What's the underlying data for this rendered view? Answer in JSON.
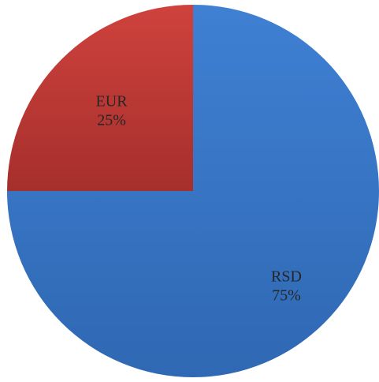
{
  "chart_data": {
    "type": "pie",
    "title": "",
    "slices": [
      {
        "label": "RSD",
        "percent_label": "75%",
        "value": 75,
        "color": "#3a78c8"
      },
      {
        "label": "EUR",
        "percent_label": "25%",
        "value": 25,
        "color": "#bf3935"
      }
    ],
    "start_angle_deg": 0,
    "direction": "clockwise",
    "legend": "none",
    "data_labels": "inside"
  }
}
